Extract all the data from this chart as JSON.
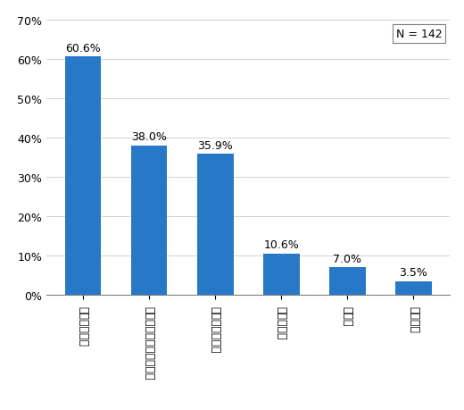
{
  "categories": [
    "株式投資信託",
    "外国で作られた投資信託",
    "公社債投資信託",
    "不動産投信",
    "ＥＴＦ",
    "種類不明"
  ],
  "values": [
    60.6,
    38.0,
    35.9,
    10.6,
    7.0,
    3.5
  ],
  "bar_color": "#2878c8",
  "ylim": [
    0,
    70
  ],
  "yticks": [
    0,
    10,
    20,
    30,
    40,
    50,
    60,
    70
  ],
  "ylabel_format": "%",
  "n_label": "N = 142",
  "background_color": "#ffffff",
  "bar_width": 0.55,
  "label_fontsize": 9,
  "tick_fontsize": 9,
  "annotation_fontsize": 9
}
